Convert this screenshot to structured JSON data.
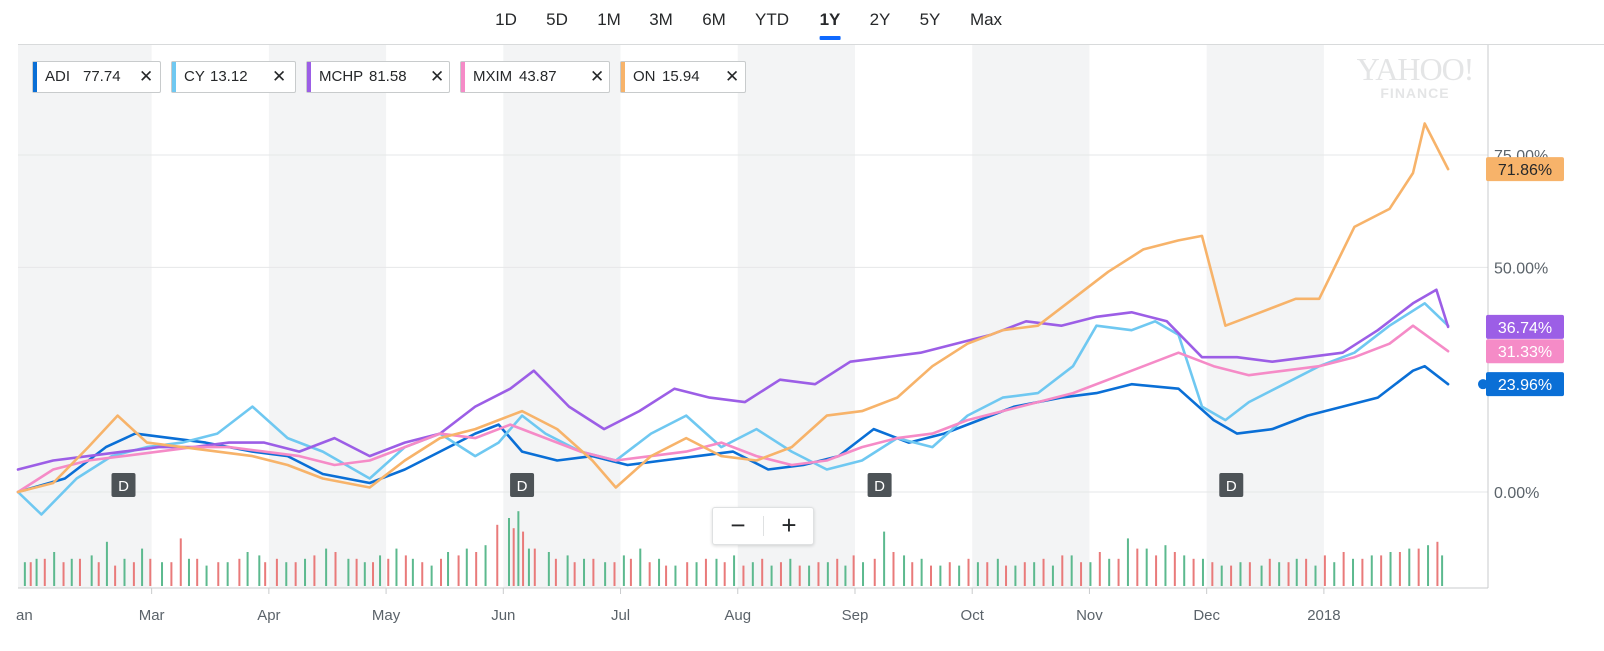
{
  "range_selector": {
    "items": [
      "1D",
      "5D",
      "1M",
      "3M",
      "6M",
      "YTD",
      "1Y",
      "2Y",
      "5Y",
      "Max"
    ],
    "selected": "1Y"
  },
  "comparison_chips": [
    {
      "symbol": "ADI",
      "price": "77.74",
      "color": "#0a6fd6"
    },
    {
      "symbol": "CY",
      "price": "13.12",
      "color": "#6fc8f1"
    },
    {
      "symbol": "MCHP",
      "price": "81.58",
      "color": "#9c5ee6"
    },
    {
      "symbol": "MXIM",
      "price": "43.87",
      "color": "#f58bc7"
    },
    {
      "symbol": "ON",
      "price": "15.94",
      "color": "#f7b36a"
    }
  ],
  "logo": {
    "main": "YAHOO!",
    "sub": "FINANCE"
  },
  "zoom": {
    "minus": "−",
    "plus": "+"
  },
  "colors": {
    "ADI": "#0a6fd6",
    "CY": "#6fc8f1",
    "MCHP": "#9c5ee6",
    "MXIM": "#f58bc7",
    "ON": "#f7b36a",
    "volume_up": "#5cb98e",
    "volume_down": "#e97a7a",
    "band": "#f3f4f5",
    "dividend": "#4d5357"
  },
  "chart_data": {
    "type": "line",
    "y_unit": "%",
    "x_labels": [
      "an",
      "Mar",
      "Apr",
      "May",
      "Jun",
      "Jul",
      "Aug",
      "Sep",
      "Oct",
      "Nov",
      "Dec",
      "2018"
    ],
    "x_label_months": [
      0,
      1.14,
      2.14,
      3.14,
      4.14,
      5.14,
      6.14,
      7.14,
      8.14,
      9.14,
      10.14,
      11.14
    ],
    "y_tick_labels": [
      "75.00%",
      "50.00%",
      "0.00%"
    ],
    "y_tick_values": [
      75,
      50,
      0
    ],
    "ylim": [
      -19,
      98
    ],
    "xlim_months": [
      0,
      12.25
    ],
    "last_values": [
      {
        "label": "71.86%",
        "series": "ON"
      },
      {
        "label": "36.74%",
        "series": "MCHP"
      },
      {
        "label": "31.33%",
        "series": "MXIM"
      },
      {
        "label": "23.96%",
        "series": "ADI"
      }
    ],
    "dividend_marker_label": "D",
    "dividend_markers_months": [
      0.9,
      4.3,
      7.35,
      10.35
    ],
    "series": [
      {
        "name": "ADI",
        "x": [
          0,
          0.4,
          0.75,
          1.0,
          1.3,
          1.6,
          2.0,
          2.3,
          2.6,
          3.0,
          3.3,
          3.6,
          3.9,
          4.1,
          4.3,
          4.6,
          4.9,
          5.2,
          5.5,
          5.8,
          6.1,
          6.4,
          6.7,
          7.0,
          7.3,
          7.6,
          7.9,
          8.2,
          8.5,
          8.9,
          9.2,
          9.5,
          9.9,
          10.2,
          10.4,
          10.7,
          11.0,
          11.3,
          11.6,
          11.9,
          12.0,
          12.2
        ],
        "y": [
          0,
          3,
          10,
          13,
          12,
          11,
          9,
          8,
          4,
          2,
          5,
          9,
          13,
          15,
          9,
          7,
          8,
          6,
          7,
          8,
          9,
          5,
          6,
          8,
          14,
          11,
          13,
          16,
          19,
          21,
          22,
          24,
          23,
          16,
          13,
          14,
          17,
          19,
          21,
          27,
          28,
          24
        ]
      },
      {
        "name": "CY",
        "x": [
          0,
          0.2,
          0.5,
          0.8,
          1.1,
          1.4,
          1.7,
          2.0,
          2.3,
          2.6,
          3.0,
          3.3,
          3.6,
          3.9,
          4.1,
          4.3,
          4.5,
          4.8,
          5.1,
          5.4,
          5.7,
          6.0,
          6.3,
          6.6,
          6.9,
          7.2,
          7.5,
          7.8,
          8.1,
          8.4,
          8.7,
          9.0,
          9.2,
          9.5,
          9.7,
          9.9,
          10.1,
          10.3,
          10.5,
          10.8,
          11.1,
          11.4,
          11.7,
          12.0,
          12.2
        ],
        "y": [
          0,
          -5,
          3,
          8,
          10,
          11,
          13,
          19,
          12,
          9,
          3,
          10,
          13,
          8,
          11,
          17,
          13,
          9,
          7,
          13,
          17,
          10,
          14,
          9,
          5,
          7,
          12,
          10,
          17,
          21,
          22,
          28,
          37,
          36,
          38,
          35,
          19,
          16,
          20,
          24,
          28,
          31,
          37,
          42,
          37
        ]
      },
      {
        "name": "MCHP",
        "x": [
          0,
          0.3,
          0.6,
          0.9,
          1.2,
          1.5,
          1.8,
          2.1,
          2.4,
          2.7,
          3.0,
          3.3,
          3.6,
          3.9,
          4.2,
          4.4,
          4.7,
          5.0,
          5.3,
          5.6,
          5.9,
          6.2,
          6.5,
          6.8,
          7.1,
          7.4,
          7.7,
          8.0,
          8.3,
          8.6,
          8.9,
          9.2,
          9.5,
          9.8,
          10.1,
          10.4,
          10.7,
          11.0,
          11.3,
          11.6,
          11.9,
          12.1,
          12.2
        ],
        "y": [
          5,
          7,
          8,
          9,
          10,
          10,
          11,
          11,
          9,
          12,
          8,
          11,
          13,
          19,
          23,
          27,
          19,
          14,
          18,
          23,
          21,
          20,
          25,
          24,
          29,
          30,
          31,
          33,
          35,
          38,
          37,
          39,
          40,
          38,
          30,
          30,
          29,
          30,
          31,
          36,
          42,
          45,
          36.74
        ]
      },
      {
        "name": "MXIM",
        "x": [
          0,
          0.3,
          0.6,
          0.9,
          1.2,
          1.5,
          1.8,
          2.1,
          2.4,
          2.7,
          3.0,
          3.3,
          3.6,
          3.9,
          4.2,
          4.5,
          4.8,
          5.1,
          5.4,
          5.7,
          6.0,
          6.3,
          6.6,
          6.9,
          7.2,
          7.5,
          7.8,
          8.1,
          8.4,
          8.7,
          9.0,
          9.3,
          9.6,
          9.9,
          10.2,
          10.5,
          10.8,
          11.1,
          11.4,
          11.7,
          11.9,
          12.2
        ],
        "y": [
          0,
          5,
          7,
          8,
          9,
          10,
          10,
          9,
          8,
          6,
          7,
          10,
          13,
          12,
          15,
          12,
          9,
          7,
          8,
          9,
          11,
          8,
          6,
          7,
          10,
          12,
          13,
          16,
          18,
          20,
          22,
          25,
          28,
          31,
          28,
          26,
          27,
          28,
          30,
          33,
          37,
          31.33
        ]
      },
      {
        "name": "ON",
        "x": [
          0,
          0.3,
          0.6,
          0.85,
          1.1,
          1.4,
          1.7,
          2.0,
          2.3,
          2.6,
          3.0,
          3.3,
          3.6,
          3.9,
          4.1,
          4.3,
          4.6,
          4.9,
          5.1,
          5.4,
          5.7,
          6.0,
          6.3,
          6.6,
          6.9,
          7.2,
          7.5,
          7.8,
          8.1,
          8.4,
          8.7,
          9.0,
          9.3,
          9.6,
          9.9,
          10.1,
          10.3,
          10.6,
          10.9,
          11.1,
          11.4,
          11.7,
          11.9,
          12.0,
          12.2
        ],
        "y": [
          0,
          2,
          10,
          17,
          11,
          10,
          9,
          8,
          6,
          3,
          1,
          7,
          12,
          14,
          16,
          18,
          14,
          7,
          1,
          8,
          12,
          8,
          7,
          10,
          17,
          18,
          21,
          28,
          33,
          36,
          37,
          43,
          49,
          54,
          56,
          57,
          37,
          40,
          43,
          43,
          59,
          63,
          71,
          82,
          71.86
        ]
      }
    ],
    "volume_up_bars": [
      0.05,
      0.15,
      0.3,
      0.45,
      0.62,
      0.75,
      0.9,
      1.05,
      1.22,
      1.45,
      1.6,
      1.78,
      1.95,
      2.05,
      2.28,
      2.44,
      2.62,
      2.81,
      2.95,
      3.08,
      3.22,
      3.36,
      3.52,
      3.66,
      3.82,
      3.98,
      4.18,
      4.26,
      4.35,
      4.52,
      4.68,
      4.82,
      5.0,
      5.16,
      5.3,
      5.46,
      5.6,
      5.78,
      5.95,
      6.1,
      6.26,
      6.42,
      6.58,
      6.74,
      6.9,
      7.05,
      7.2,
      7.38,
      7.55,
      7.7,
      7.86,
      8.02,
      8.18,
      8.35,
      8.5,
      8.66,
      8.82,
      8.98,
      9.14,
      9.3,
      9.46,
      9.62,
      9.78,
      9.94,
      10.1,
      10.26,
      10.42,
      10.6,
      10.75,
      10.9,
      11.06,
      11.22,
      11.38,
      11.54,
      11.7,
      11.86,
      12.02,
      12.14
    ],
    "volume_up_heights": [
      0.35,
      0.4,
      0.5,
      0.4,
      0.45,
      0.65,
      0.4,
      0.55,
      0.35,
      0.4,
      0.3,
      0.35,
      0.5,
      0.45,
      0.35,
      0.4,
      0.55,
      0.4,
      0.35,
      0.45,
      0.55,
      0.4,
      0.3,
      0.5,
      0.55,
      0.6,
      1.0,
      1.1,
      0.55,
      0.5,
      0.45,
      0.4,
      0.35,
      0.45,
      0.55,
      0.4,
      0.3,
      0.35,
      0.4,
      0.45,
      0.35,
      0.3,
      0.4,
      0.3,
      0.35,
      0.3,
      0.35,
      0.8,
      0.45,
      0.4,
      0.3,
      0.3,
      0.35,
      0.4,
      0.3,
      0.35,
      0.3,
      0.45,
      0.35,
      0.4,
      0.7,
      0.55,
      0.6,
      0.45,
      0.4,
      0.3,
      0.35,
      0.3,
      0.35,
      0.4,
      0.3,
      0.35,
      0.4,
      0.45,
      0.5,
      0.55,
      0.6,
      0.45
    ],
    "volume_down_bars": [
      0.1,
      0.22,
      0.38,
      0.52,
      0.68,
      0.82,
      0.98,
      1.12,
      1.3,
      1.38,
      1.52,
      1.7,
      1.88,
      2.1,
      2.2,
      2.36,
      2.52,
      2.7,
      2.88,
      3.02,
      3.15,
      3.3,
      3.44,
      3.6,
      3.75,
      3.9,
      4.08,
      4.22,
      4.3,
      4.4,
      4.58,
      4.74,
      4.9,
      5.08,
      5.22,
      5.38,
      5.52,
      5.7,
      5.86,
      6.02,
      6.18,
      6.34,
      6.5,
      6.66,
      6.82,
      6.98,
      7.12,
      7.3,
      7.46,
      7.62,
      7.78,
      7.94,
      8.1,
      8.26,
      8.42,
      8.58,
      8.74,
      8.9,
      9.06,
      9.22,
      9.38,
      9.54,
      9.7,
      9.86,
      10.02,
      10.18,
      10.34,
      10.5,
      10.67,
      10.83,
      10.98,
      11.14,
      11.3,
      11.46,
      11.62,
      11.78,
      11.94,
      12.1
    ],
    "volume_down_heights": [
      0.35,
      0.4,
      0.35,
      0.4,
      0.35,
      0.3,
      0.35,
      0.4,
      0.35,
      0.7,
      0.4,
      0.35,
      0.4,
      0.35,
      0.4,
      0.35,
      0.45,
      0.5,
      0.4,
      0.35,
      0.4,
      0.45,
      0.35,
      0.4,
      0.45,
      0.5,
      0.9,
      0.85,
      0.8,
      0.55,
      0.4,
      0.35,
      0.4,
      0.35,
      0.4,
      0.35,
      0.3,
      0.35,
      0.4,
      0.35,
      0.3,
      0.4,
      0.35,
      0.3,
      0.35,
      0.4,
      0.45,
      0.4,
      0.5,
      0.35,
      0.3,
      0.35,
      0.4,
      0.35,
      0.3,
      0.35,
      0.4,
      0.45,
      0.35,
      0.5,
      0.4,
      0.55,
      0.45,
      0.5,
      0.4,
      0.35,
      0.3,
      0.35,
      0.4,
      0.35,
      0.4,
      0.45,
      0.5,
      0.4,
      0.45,
      0.5,
      0.55,
      0.65
    ]
  }
}
